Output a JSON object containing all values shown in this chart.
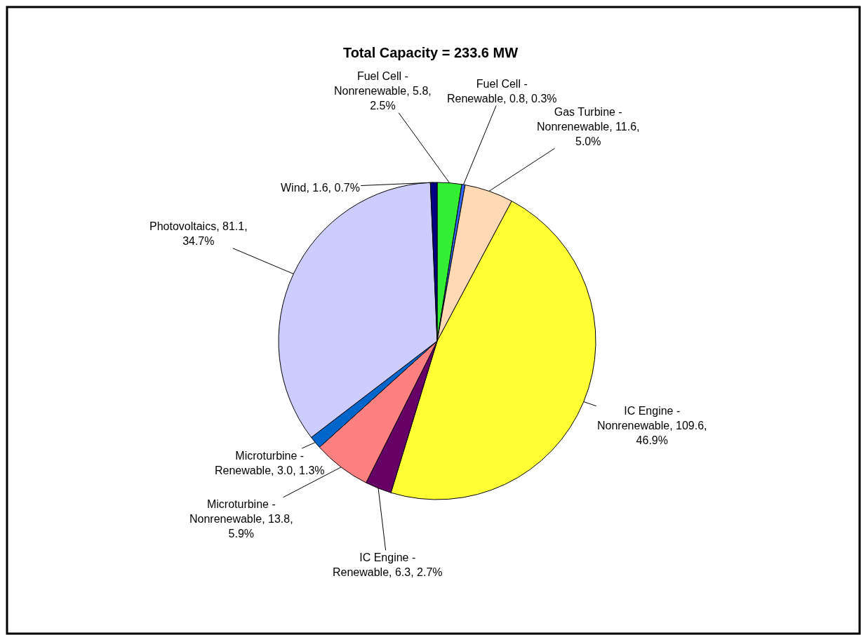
{
  "chart_data": {
    "type": "pie",
    "title": "Total Capacity = 233.6 MW",
    "categories": [
      "Fuel Cell - Nonrenewable",
      "Fuel Cell - Renewable",
      "Gas Turbine - Nonrenewable",
      "IC Engine - Nonrenewable",
      "IC Engine - Renewable",
      "Microturbine - Nonrenewable",
      "Microturbine - Renewable",
      "Photovoltaics",
      "Wind"
    ],
    "values": [
      5.8,
      0.8,
      11.6,
      109.6,
      6.3,
      13.8,
      3.0,
      81.1,
      1.6
    ],
    "value_labels": [
      "5.8, 2.5%",
      "0.8, 0.3%",
      "11.6, 5.0%",
      "109.6, 46.9%",
      "6.3, 2.7%",
      "13.8, 5.9%",
      "3.0, 1.3%",
      "81.1, 34.7%",
      "1.6, 0.7%"
    ],
    "colors": [
      "#33ee33",
      "#3366ff",
      "#ffd9b3",
      "#ffff33",
      "#660066",
      "#ff8080",
      "#0066cc",
      "#ccccff",
      "#000080"
    ],
    "legend": false
  }
}
